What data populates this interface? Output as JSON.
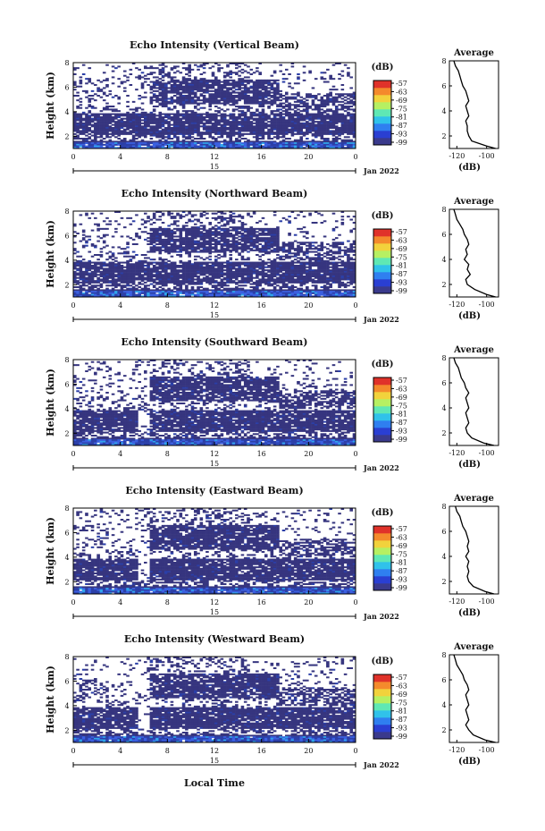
{
  "figure": {
    "common_xlabel": "Local Time"
  },
  "colorbar": {
    "unit_label": "(dB)",
    "ticks": [
      "-57",
      "-63",
      "-69",
      "-75",
      "-81",
      "-87",
      "-93",
      "-99"
    ],
    "colors": [
      "#3a3a8c",
      "#2a3fd2",
      "#2f7ff0",
      "#30c2ea",
      "#5fe8b4",
      "#b6f062",
      "#f2d23c",
      "#f48a2c",
      "#e0322a"
    ]
  },
  "chart_data": [
    {
      "type": "heatmap",
      "title": "Echo Intensity (Vertical Beam)",
      "ylabel": "Height (km)",
      "xticks": [
        "0",
        "4",
        "8",
        "12",
        "16",
        "20",
        "0"
      ],
      "xlim_hours": [
        0,
        24
      ],
      "ylim_km": [
        1,
        8
      ],
      "yticks": [
        "2",
        "4",
        "6",
        "8"
      ],
      "date_day": "15",
      "date_month": "Jan 2022",
      "profile": {
        "title": "Average",
        "xlabel": "(dB)",
        "xticks": [
          "-120",
          "-100"
        ],
        "xlim": [
          -125,
          -92
        ],
        "yticks": [
          "2",
          "4",
          "6",
          "8"
        ],
        "ylim": [
          1,
          8
        ],
        "heights_km": [
          8.0,
          7.6,
          7.2,
          6.8,
          6.4,
          6.0,
          5.6,
          5.2,
          4.8,
          4.4,
          4.0,
          3.6,
          3.2,
          2.8,
          2.4,
          2.0,
          1.6,
          1.2,
          1.0
        ],
        "values_db": [
          -122,
          -121,
          -119,
          -118,
          -117,
          -116,
          -114,
          -113,
          -112,
          -114,
          -113,
          -112,
          -114,
          -113,
          -113,
          -112,
          -110,
          -100,
          -94
        ]
      }
    },
    {
      "type": "heatmap",
      "title": "Echo Intensity (Northward Beam)",
      "ylabel": "Height (km)",
      "xticks": [
        "0",
        "4",
        "8",
        "12",
        "16",
        "20",
        "0"
      ],
      "xlim_hours": [
        0,
        24
      ],
      "ylim_km": [
        1,
        8
      ],
      "yticks": [
        "2",
        "4",
        "6",
        "8"
      ],
      "date_day": "15",
      "date_month": "Jan 2022",
      "profile": {
        "title": "Average",
        "xlabel": "(dB)",
        "xticks": [
          "-120",
          "-100"
        ],
        "xlim": [
          -125,
          -92
        ],
        "yticks": [
          "2",
          "4",
          "6",
          "8"
        ],
        "ylim": [
          1,
          8
        ],
        "heights_km": [
          8.0,
          7.6,
          7.2,
          6.8,
          6.4,
          6.0,
          5.6,
          5.2,
          4.8,
          4.4,
          4.0,
          3.6,
          3.2,
          2.8,
          2.4,
          2.0,
          1.6,
          1.2,
          1.0
        ],
        "values_db": [
          -122,
          -121,
          -120,
          -118,
          -116,
          -115,
          -113,
          -112,
          -114,
          -113,
          -115,
          -112,
          -113,
          -111,
          -114,
          -113,
          -108,
          -100,
          -94
        ]
      }
    },
    {
      "type": "heatmap",
      "title": "Echo Intensity (Southward Beam)",
      "ylabel": "Height (km)",
      "xticks": [
        "0",
        "4",
        "8",
        "12",
        "16",
        "20",
        "0"
      ],
      "xlim_hours": [
        0,
        24
      ],
      "ylim_km": [
        1,
        8
      ],
      "yticks": [
        "2",
        "4",
        "6",
        "8"
      ],
      "date_day": "15",
      "date_month": "Jan 2022",
      "profile": {
        "title": "Average",
        "xlabel": "(dB)",
        "xticks": [
          "-120",
          "-100"
        ],
        "xlim": [
          -125,
          -92
        ],
        "yticks": [
          "2",
          "4",
          "6",
          "8"
        ],
        "ylim": [
          1,
          8
        ],
        "heights_km": [
          8.0,
          7.6,
          7.2,
          6.8,
          6.4,
          6.0,
          5.6,
          5.2,
          4.8,
          4.4,
          4.0,
          3.6,
          3.2,
          2.8,
          2.4,
          2.0,
          1.6,
          1.2,
          1.0
        ],
        "values_db": [
          -122,
          -121,
          -119,
          -118,
          -117,
          -115,
          -114,
          -112,
          -114,
          -113,
          -112,
          -114,
          -113,
          -112,
          -114,
          -113,
          -110,
          -102,
          -95
        ]
      }
    },
    {
      "type": "heatmap",
      "title": "Echo Intensity (Eastward Beam)",
      "ylabel": "Height (km)",
      "xticks": [
        "0",
        "4",
        "8",
        "12",
        "16",
        "20",
        "0"
      ],
      "xlim_hours": [
        0,
        24
      ],
      "ylim_km": [
        1,
        8
      ],
      "yticks": [
        "2",
        "4",
        "6",
        "8"
      ],
      "date_day": "15",
      "date_month": "Jan 2022",
      "profile": {
        "title": "Average",
        "xlabel": "(dB)",
        "xticks": [
          "-120",
          "-100"
        ],
        "xlim": [
          -125,
          -92
        ],
        "yticks": [
          "2",
          "4",
          "6",
          "8"
        ],
        "ylim": [
          1,
          8
        ],
        "heights_km": [
          8.0,
          7.6,
          7.2,
          6.8,
          6.4,
          6.0,
          5.6,
          5.2,
          4.8,
          4.4,
          4.0,
          3.6,
          3.2,
          2.8,
          2.4,
          2.0,
          1.6,
          1.2,
          1.0
        ],
        "values_db": [
          -121,
          -120,
          -118,
          -117,
          -116,
          -114,
          -113,
          -112,
          -113,
          -112,
          -114,
          -112,
          -113,
          -112,
          -113,
          -112,
          -109,
          -101,
          -95
        ]
      }
    },
    {
      "type": "heatmap",
      "title": "Echo Intensity (Westward Beam)",
      "ylabel": "Height (km)",
      "xticks": [
        "0",
        "4",
        "8",
        "12",
        "16",
        "20",
        "0"
      ],
      "xlim_hours": [
        0,
        24
      ],
      "ylim_km": [
        1,
        8
      ],
      "yticks": [
        "2",
        "4",
        "6",
        "8"
      ],
      "date_day": "15",
      "date_month": "Jan 2022",
      "profile": {
        "title": "Average",
        "xlabel": "(dB)",
        "xticks": [
          "-120",
          "-100"
        ],
        "xlim": [
          -125,
          -92
        ],
        "yticks": [
          "2",
          "4",
          "6",
          "8"
        ],
        "ylim": [
          1,
          8
        ],
        "heights_km": [
          8.0,
          7.6,
          7.2,
          6.8,
          6.4,
          6.0,
          5.6,
          5.2,
          4.8,
          4.4,
          4.0,
          3.6,
          3.2,
          2.8,
          2.4,
          2.0,
          1.6,
          1.2,
          1.0
        ],
        "values_db": [
          -122,
          -121,
          -120,
          -118,
          -116,
          -115,
          -113,
          -112,
          -114,
          -113,
          -112,
          -114,
          -113,
          -112,
          -114,
          -112,
          -109,
          -101,
          -94
        ]
      }
    }
  ]
}
